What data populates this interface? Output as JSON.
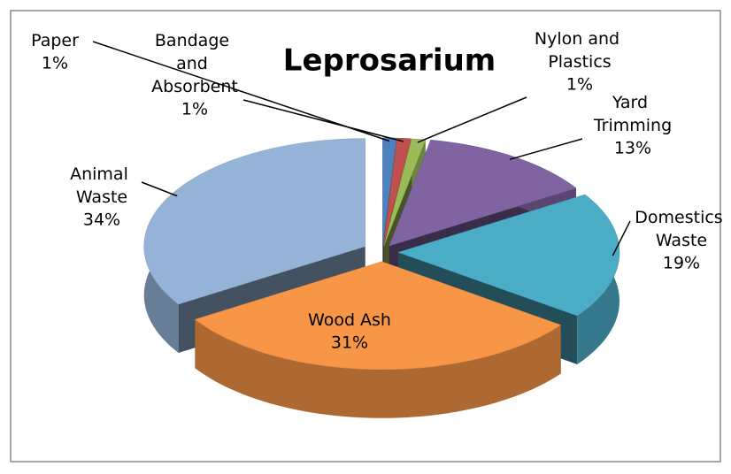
{
  "chart_data": {
    "type": "pie",
    "title": "Leprosarium",
    "categories": [
      "Paper",
      "Bandage and Absorbent",
      "Nylon and Plastics",
      "Yard Trimming",
      "Domestics Waste",
      "Wood Ash",
      "Animal Waste"
    ],
    "values": [
      1,
      1,
      1,
      13,
      19,
      31,
      34
    ],
    "value_labels": [
      "1%",
      "1%",
      "1%",
      "13%",
      "19%",
      "31%",
      "34%"
    ],
    "colors": [
      "#4f81bd",
      "#c0504d",
      "#9bbb59",
      "#8064a2",
      "#4bacc6",
      "#f79646",
      "#95b3d7"
    ]
  }
}
